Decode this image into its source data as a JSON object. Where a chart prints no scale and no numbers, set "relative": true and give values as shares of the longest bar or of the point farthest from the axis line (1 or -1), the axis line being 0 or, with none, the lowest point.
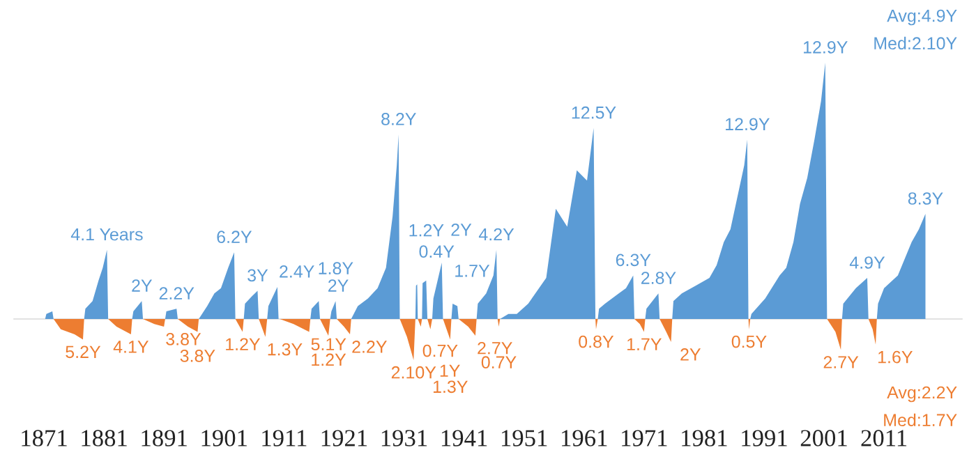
{
  "chart_data": {
    "type": "area",
    "relative": true,
    "grid": false,
    "xlim": [
      1866,
      2024
    ],
    "xticks": [
      1871,
      1881,
      1891,
      1901,
      1911,
      1921,
      1931,
      1941,
      1951,
      1961,
      1971,
      1981,
      1991,
      2001,
      2011
    ],
    "series": [
      {
        "color": "#5b9bd5",
        "x": [
          1871.2,
          1871.4,
          1872.4,
          1872.6,
          1877.7,
          1877.9,
          1879.1,
          1880.1,
          1880.8,
          1881.5,
          1881.7,
          1885.7,
          1885.9,
          1887.3,
          1887.5,
          1891.2,
          1891.4,
          1893.1,
          1893.3,
          1896.8,
          1898.2,
          1899.4,
          1900.5,
          1901.7,
          1902.7,
          1902.9,
          1904.3,
          1904.5,
          1905.7,
          1906.6,
          1906.8,
          1908.2,
          1908.4,
          1909.9,
          1910.1,
          1915.4,
          1915.6,
          1916.8,
          1917.0,
          1918.7,
          1918.9,
          1919.6,
          1919.8,
          1922.2,
          1923.3,
          1925.0,
          1926.6,
          1928.0,
          1929.1,
          1929.8,
          1930.1,
          1930.3,
          1932.9,
          1933.0,
          1933.2,
          1933.3,
          1934.0,
          1934.1,
          1934.7,
          1934.9,
          1935.7,
          1935.9,
          1936.6,
          1937.3,
          1937.5,
          1938.9,
          1939.1,
          1939.9,
          1940.1,
          1943.1,
          1943.3,
          1944.7,
          1945.9,
          1946.4,
          1946.6,
          1947.0,
          1948.4,
          1949.8,
          1951.7,
          1954.7,
          1956.3,
          1958.2,
          1959.8,
          1961.5,
          1962.6,
          1962.9,
          1963.3,
          1963.5,
          1964.5,
          1966.8,
          1968.0,
          1969.2,
          1969.4,
          1971.2,
          1971.4,
          1972.4,
          1973.4,
          1973.6,
          1975.7,
          1975.9,
          1977.3,
          1979.6,
          1981.9,
          1983.1,
          1984.3,
          1985.4,
          1986.6,
          1987.7,
          1988.2,
          1988.4,
          1988.7,
          1988.9,
          1991.2,
          1993.6,
          1994.7,
          1995.9,
          1997.0,
          1998.2,
          1999.4,
          2000.5,
          2001.2,
          2001.5,
          2004.0,
          2004.2,
          2006.3,
          2008.2,
          2008.4,
          2009.8,
          2010.0,
          2011.0,
          2013.3,
          2015.6,
          2016.8,
          2017.9
        ],
        "values": [
          0,
          0.02,
          0.03,
          0,
          0,
          0.04,
          0.07,
          0.15,
          0.2,
          0.27,
          0,
          0,
          0.03,
          0.07,
          0,
          0,
          0.03,
          0.04,
          0,
          0,
          0.05,
          0.1,
          0.12,
          0.2,
          0.26,
          0,
          0,
          0.06,
          0.09,
          0.11,
          0,
          0,
          0.05,
          0.125,
          0,
          0,
          0.04,
          0.07,
          0,
          0,
          0.03,
          0.07,
          0,
          0,
          0.05,
          0.08,
          0.12,
          0.2,
          0.4,
          0.6,
          0.72,
          0,
          0,
          0.13,
          0.135,
          0,
          0,
          0.14,
          0.15,
          0,
          0,
          0.08,
          0.15,
          0.22,
          0,
          0,
          0.06,
          0.05,
          0,
          0,
          0.06,
          0.1,
          0.17,
          0.27,
          0,
          0,
          0.02,
          0.02,
          0.06,
          0.16,
          0.43,
          0.36,
          0.58,
          0.54,
          0.745,
          0,
          0,
          0.04,
          0.06,
          0.1,
          0.12,
          0.17,
          0,
          0,
          0.04,
          0.07,
          0.1,
          0,
          0,
          0.07,
          0.1,
          0.13,
          0.16,
          0.21,
          0.3,
          0.35,
          0.48,
          0.6,
          0.7,
          0,
          0,
          0.02,
          0.08,
          0.17,
          0.2,
          0.3,
          0.45,
          0.55,
          0.7,
          0.85,
          1.0,
          0,
          0,
          0.06,
          0.12,
          0.16,
          0,
          0,
          0.06,
          0.12,
          0.17,
          0.3,
          0.35,
          0.41
        ]
      },
      {
        "color": "#ed7d31",
        "x": [
          1872.6,
          1873.8,
          1876.1,
          1877.5,
          1877.7,
          1881.7,
          1883.1,
          1885.5,
          1885.7,
          1887.5,
          1889.4,
          1891.0,
          1891.2,
          1893.3,
          1895.0,
          1896.6,
          1896.8,
          1902.9,
          1904.1,
          1904.3,
          1906.8,
          1907.9,
          1908.2,
          1910.3,
          1912.6,
          1915.2,
          1915.4,
          1917.0,
          1918.4,
          1918.7,
          1919.8,
          1921.0,
          1922.0,
          1922.2,
          1930.3,
          1931.5,
          1932.6,
          1932.9,
          1933.3,
          1933.8,
          1934.0,
          1934.9,
          1935.4,
          1935.7,
          1937.5,
          1938.7,
          1938.9,
          1940.1,
          1941.7,
          1942.9,
          1943.1,
          1946.6,
          1946.8,
          1947.0,
          1962.9,
          1963.0,
          1963.3,
          1969.4,
          1970.3,
          1971.0,
          1971.2,
          1973.6,
          1974.7,
          1975.5,
          1975.7,
          1988.4,
          1988.5,
          1988.7,
          2001.5,
          2002.9,
          2003.8,
          2004.0,
          2008.4,
          2009.1,
          2009.6,
          2009.8
        ],
        "values": [
          0,
          -0.04,
          -0.06,
          -0.08,
          0,
          0,
          -0.03,
          -0.06,
          0,
          0,
          -0.02,
          -0.03,
          0,
          0,
          -0.03,
          -0.05,
          0,
          0,
          -0.05,
          0,
          0,
          -0.07,
          0,
          0,
          -0.02,
          -0.05,
          0,
          0,
          -0.065,
          0,
          0,
          -0.03,
          -0.06,
          0,
          0,
          -0.07,
          -0.16,
          0,
          0,
          -0.03,
          0,
          0,
          -0.04,
          0,
          0,
          -0.08,
          0,
          0,
          -0.03,
          -0.065,
          0,
          0,
          -0.03,
          0,
          0,
          -0.04,
          0,
          0,
          -0.02,
          -0.05,
          0,
          0,
          -0.05,
          -0.09,
          0,
          0,
          -0.04,
          0,
          0,
          -0.05,
          -0.12,
          0,
          0,
          -0.04,
          -0.1,
          0
        ]
      }
    ],
    "annotations": [
      {
        "text": "4.1 Years",
        "x": 1881.5,
        "y": 0.27
      },
      {
        "text": "2Y",
        "x": 1887.3,
        "y": 0.07
      },
      {
        "text": "2.2Y",
        "x": 1893.1,
        "y": 0.04
      },
      {
        "text": "6.2Y",
        "x": 1902.7,
        "y": 0.26
      },
      {
        "text": "3Y",
        "x": 1906.6,
        "y": 0.11
      },
      {
        "text": "2.4Y",
        "x": 1909.9,
        "y": 0.125
      },
      {
        "text": "2Y",
        "x": 1916.8,
        "y": 0.07
      },
      {
        "text": "1.8Y",
        "x": 1919.6,
        "y": 0.07
      },
      {
        "text": "8.2Y",
        "x": 1930.1,
        "y": 0.72
      },
      {
        "text": "0.4Y",
        "x": 1933.2,
        "y": 0.135
      },
      {
        "text": "1.2Y",
        "x": 1934.7,
        "y": 0.15
      },
      {
        "text": "2Y",
        "x": 1937.3,
        "y": 0.22
      },
      {
        "text": "1.7Y",
        "x": 1939.1,
        "y": 0.06
      },
      {
        "text": "4.2Y",
        "x": 1946.4,
        "y": 0.27
      },
      {
        "text": "12.5Y",
        "x": 1962.6,
        "y": 0.745
      },
      {
        "text": "6.3Y",
        "x": 1969.2,
        "y": 0.17
      },
      {
        "text": "2.8Y",
        "x": 1973.4,
        "y": 0.1
      },
      {
        "text": "12.9Y",
        "x": 1988.2,
        "y": 0.7
      },
      {
        "text": "12.9Y",
        "x": 2001.2,
        "y": 1.0
      },
      {
        "text": "4.9Y",
        "x": 2008.2,
        "y": 0.16
      },
      {
        "text": "8.3Y",
        "x": 2017.9,
        "y": 0.41
      },
      {
        "text": "5.2Y",
        "x": 1877.5,
        "y": -0.08
      },
      {
        "text": "4.1Y",
        "x": 1885.5,
        "y": -0.06
      },
      {
        "text": "3.8Y",
        "x": 1891.0,
        "y": -0.03
      },
      {
        "text": "3.8Y",
        "x": 1896.6,
        "y": -0.05
      },
      {
        "text": "1.2Y",
        "x": 1904.1,
        "y": -0.05
      },
      {
        "text": "1.3Y",
        "x": 1907.9,
        "y": -0.07
      },
      {
        "text": "5.1Y",
        "x": 1915.2,
        "y": -0.05
      },
      {
        "text": "1.2Y",
        "x": 1918.4,
        "y": -0.065
      },
      {
        "text": "2.2Y",
        "x": 1922.0,
        "y": -0.06
      },
      {
        "text": "2.10Y",
        "x": 1932.6,
        "y": -0.16
      },
      {
        "text": "0.7Y",
        "x": 1933.8,
        "y": -0.03
      },
      {
        "text": "1Y",
        "x": 1935.4,
        "y": -0.04
      },
      {
        "text": "1.3Y",
        "x": 1938.7,
        "y": -0.08
      },
      {
        "text": "2.7Y",
        "x": 1942.9,
        "y": -0.065
      },
      {
        "text": "0.7Y",
        "x": 1946.8,
        "y": -0.03
      },
      {
        "text": "0.8Y",
        "x": 1963.0,
        "y": -0.04
      },
      {
        "text": "1.7Y",
        "x": 1971.0,
        "y": -0.05
      },
      {
        "text": "2Y",
        "x": 1975.5,
        "y": -0.09
      },
      {
        "text": "0.5Y",
        "x": 1988.5,
        "y": -0.04
      },
      {
        "text": "2.7Y",
        "x": 2003.8,
        "y": -0.12
      },
      {
        "text": "1.6Y",
        "x": 2009.6,
        "y": -0.1
      },
      "Avg:4.9Y",
      "Med:2.10Y",
      "Avg:2.2Y",
      "Med:1.7Y"
    ]
  }
}
